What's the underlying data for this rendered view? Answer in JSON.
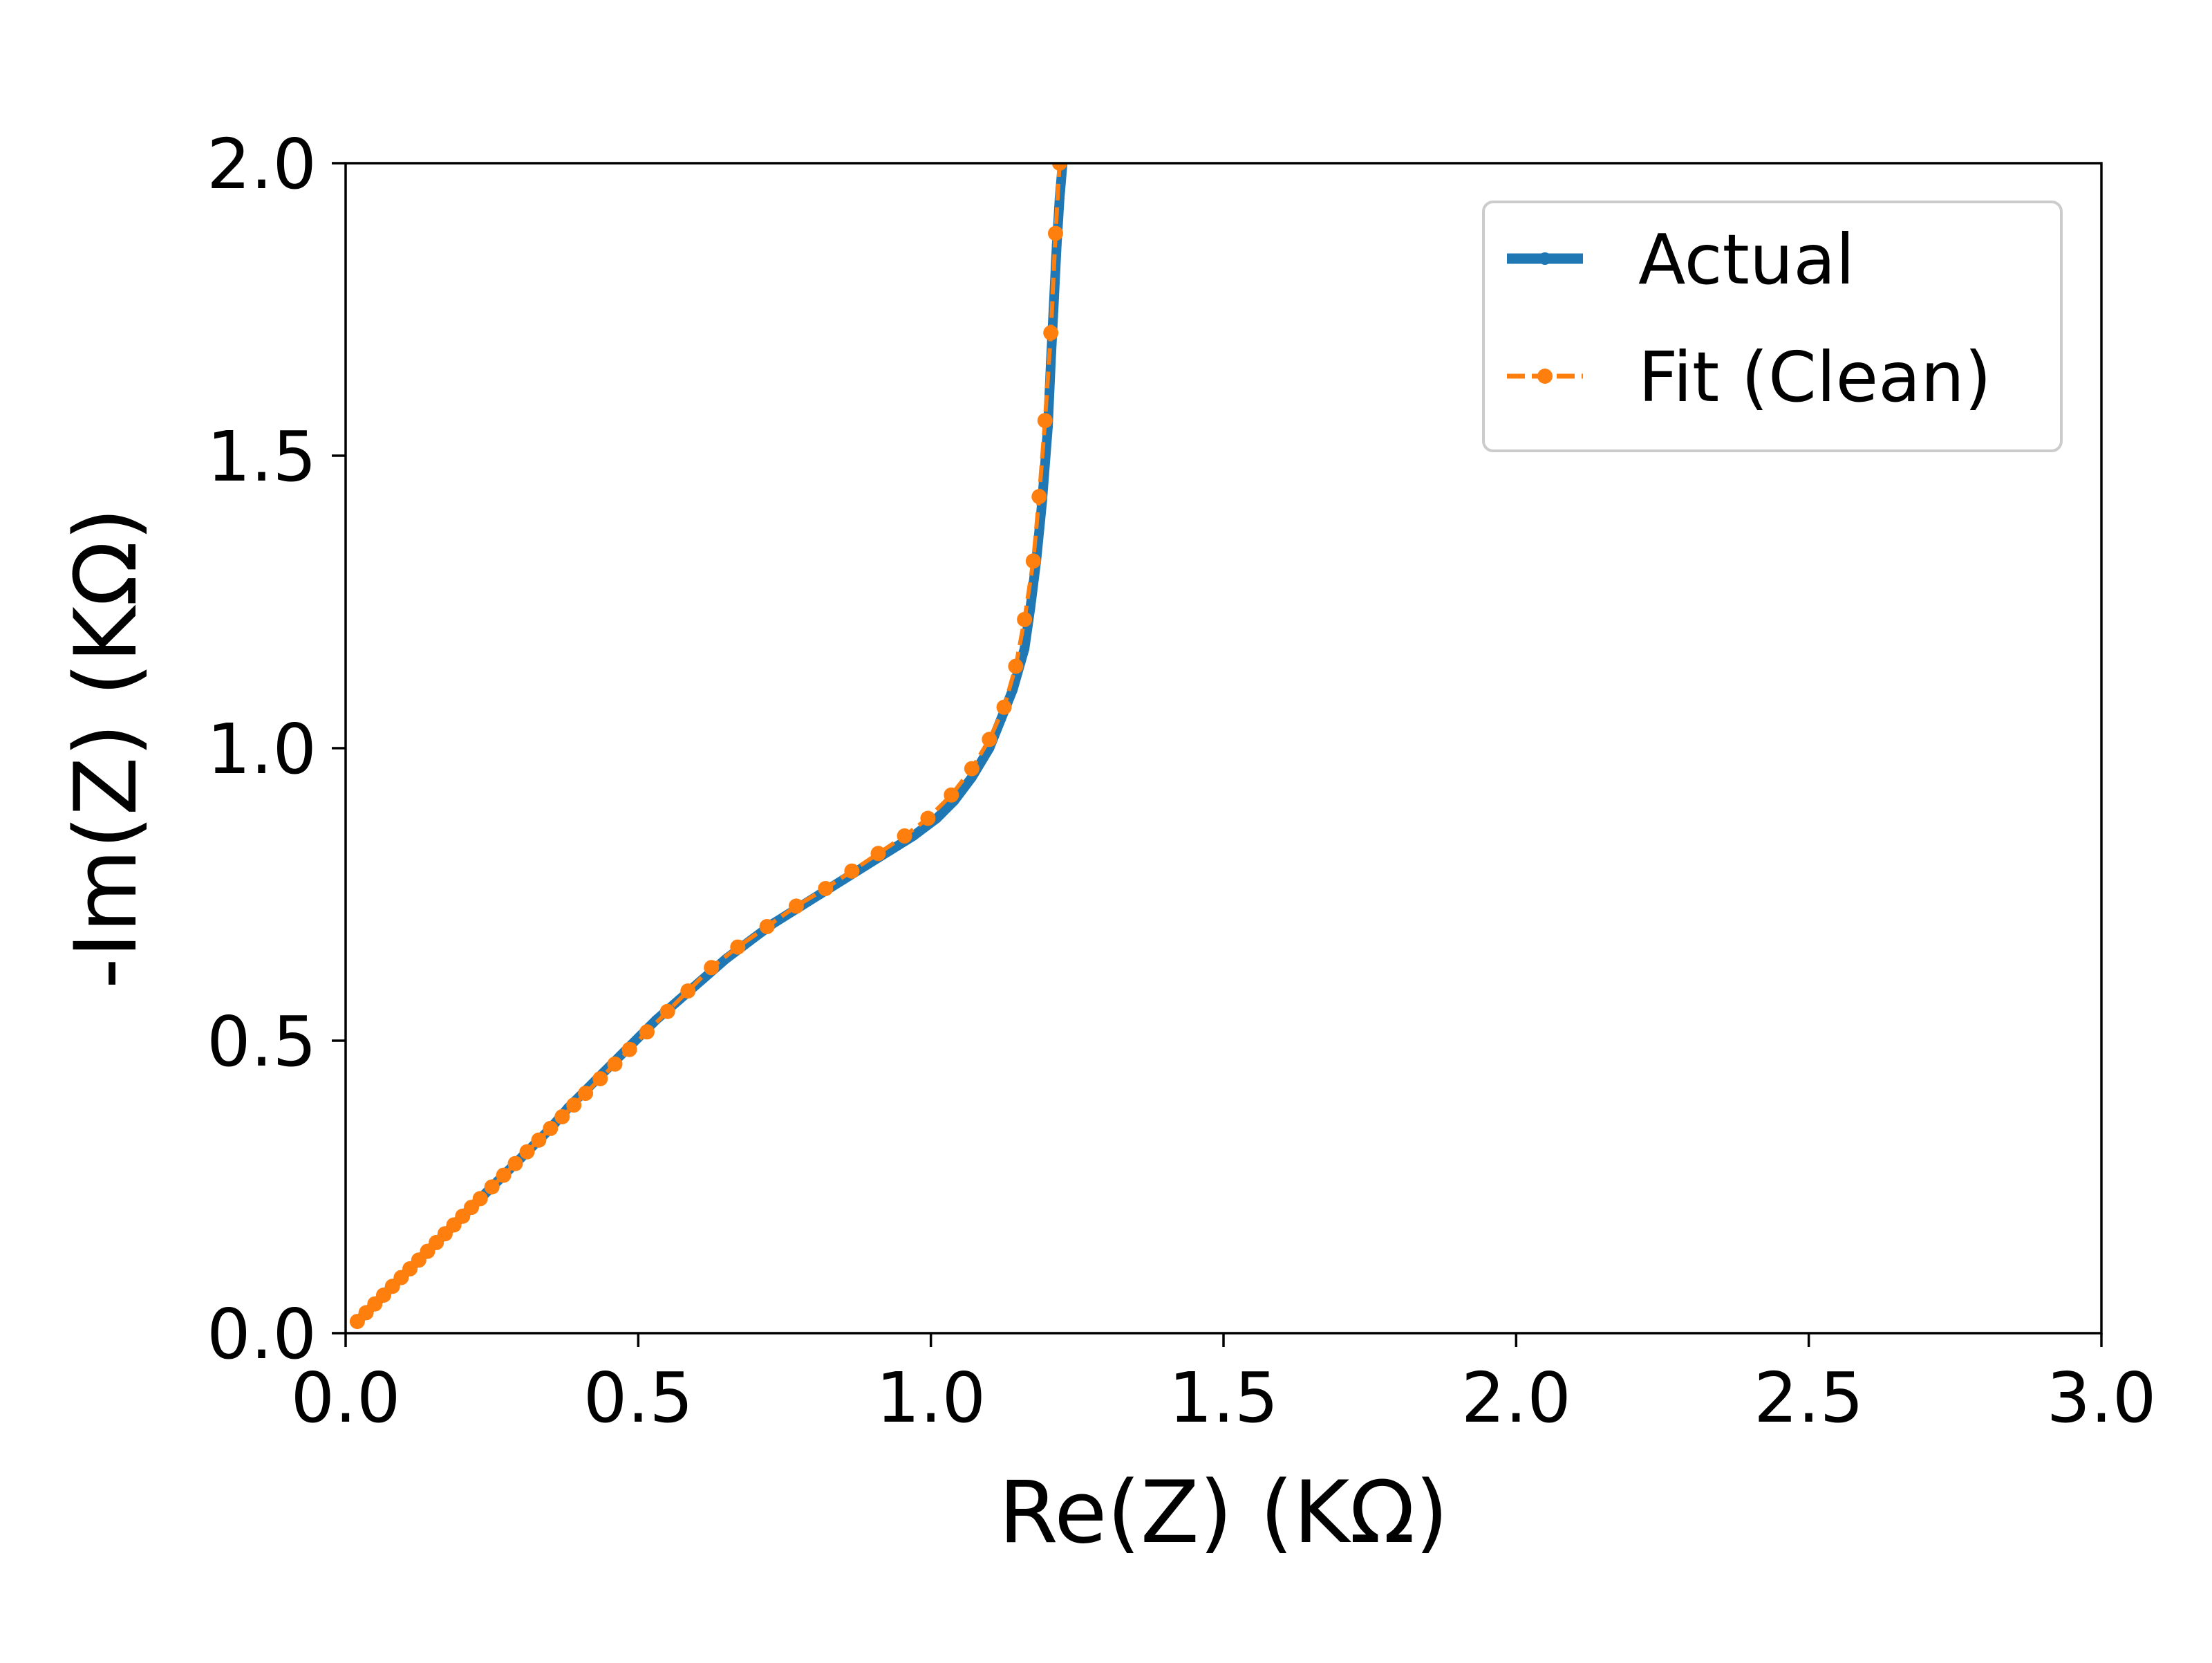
{
  "chart_data": {
    "type": "line",
    "title": "",
    "xlabel": "Re(Z) (KΩ)",
    "ylabel": "-Im(Z) (KΩ)",
    "xlim": [
      0.0,
      3.0
    ],
    "ylim": [
      0.0,
      2.0
    ],
    "xticks": [
      "0.0",
      "0.5",
      "1.0",
      "1.5",
      "2.0",
      "2.5",
      "3.0"
    ],
    "yticks": [
      "0.0",
      "0.5",
      "1.0",
      "1.5",
      "2.0"
    ],
    "grid": false,
    "legend_position": "top-right",
    "series": [
      {
        "name": "Actual",
        "color": "#1f77b4",
        "style": "solid-line-with-dots",
        "x": [
          0.02,
          0.05,
          0.08,
          0.11,
          0.14,
          0.17,
          0.2,
          0.23,
          0.26,
          0.29,
          0.32,
          0.35,
          0.38,
          0.41,
          0.44,
          0.47,
          0.5,
          0.53,
          0.57,
          0.61,
          0.65,
          0.69,
          0.73,
          0.77,
          0.81,
          0.85,
          0.89,
          0.93,
          0.97,
          1.01,
          1.04,
          1.07,
          1.1,
          1.12,
          1.14,
          1.16,
          1.17,
          1.18,
          1.19,
          1.2,
          1.205,
          1.21,
          1.215,
          1.22,
          1.225
        ],
        "y": [
          0.02,
          0.05,
          0.08,
          0.11,
          0.14,
          0.17,
          0.2,
          0.23,
          0.26,
          0.29,
          0.32,
          0.35,
          0.385,
          0.415,
          0.445,
          0.475,
          0.505,
          0.535,
          0.57,
          0.605,
          0.64,
          0.67,
          0.7,
          0.725,
          0.75,
          0.775,
          0.8,
          0.825,
          0.85,
          0.88,
          0.91,
          0.95,
          1.0,
          1.05,
          1.1,
          1.17,
          1.24,
          1.32,
          1.42,
          1.55,
          1.66,
          1.76,
          1.86,
          1.94,
          2.0
        ]
      },
      {
        "name": "Fit (Clean)",
        "color": "#ff7f0e",
        "style": "dashed-line-with-dots",
        "x": [
          0.02,
          0.035,
          0.05,
          0.065,
          0.08,
          0.095,
          0.11,
          0.125,
          0.14,
          0.155,
          0.17,
          0.185,
          0.2,
          0.215,
          0.23,
          0.25,
          0.27,
          0.29,
          0.31,
          0.33,
          0.35,
          0.37,
          0.39,
          0.41,
          0.435,
          0.46,
          0.485,
          0.515,
          0.55,
          0.585,
          0.625,
          0.67,
          0.72,
          0.77,
          0.82,
          0.865,
          0.91,
          0.955,
          0.995,
          1.035,
          1.07,
          1.1,
          1.125,
          1.145,
          1.16,
          1.175,
          1.185,
          1.195,
          1.205,
          1.213,
          1.22
        ],
        "y": [
          0.02,
          0.035,
          0.05,
          0.065,
          0.08,
          0.095,
          0.11,
          0.125,
          0.14,
          0.155,
          0.17,
          0.185,
          0.2,
          0.215,
          0.23,
          0.25,
          0.27,
          0.29,
          0.31,
          0.33,
          0.35,
          0.37,
          0.39,
          0.41,
          0.435,
          0.46,
          0.485,
          0.515,
          0.55,
          0.585,
          0.625,
          0.66,
          0.695,
          0.73,
          0.76,
          0.79,
          0.82,
          0.85,
          0.88,
          0.92,
          0.965,
          1.015,
          1.07,
          1.14,
          1.22,
          1.32,
          1.43,
          1.56,
          1.71,
          1.88,
          2.0
        ]
      }
    ]
  }
}
